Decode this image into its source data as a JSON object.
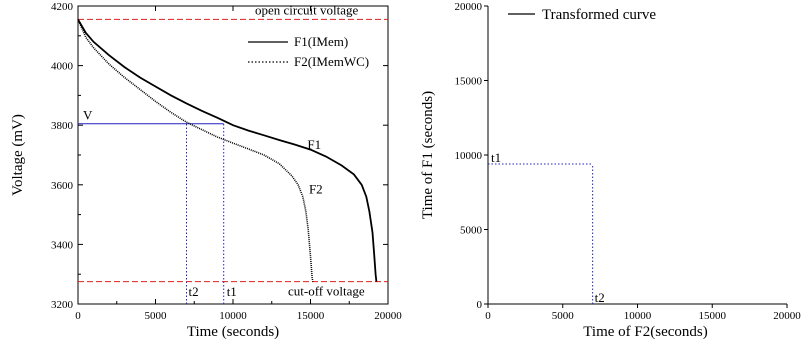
{
  "chart_data": [
    {
      "type": "line",
      "xlabel": "Time (seconds)",
      "ylabel": "Voltage (mV)",
      "xlim": [
        0,
        20000
      ],
      "ylim": [
        3200,
        4200
      ],
      "xticks": [
        "0",
        "5000",
        "10000",
        "15000",
        "20000"
      ],
      "yticks": [
        "3200",
        "3400",
        "3600",
        "3800",
        "4000",
        "4200"
      ],
      "grid": false,
      "legend_position": "top-right",
      "series": [
        {
          "name": "F1(IMem)",
          "label": "F1",
          "style": "solid",
          "color": "#000000",
          "x": [
            0,
            500,
            1000,
            2000,
            3000,
            4000,
            5000,
            6000,
            7000,
            8000,
            9000,
            10000,
            11000,
            12000,
            13000,
            14000,
            15000,
            16000,
            17000,
            17800,
            18300,
            18600,
            18800,
            19000,
            19100,
            19200,
            19250
          ],
          "y": [
            4155,
            4110,
            4080,
            4035,
            3995,
            3960,
            3930,
            3900,
            3873,
            3848,
            3825,
            3800,
            3782,
            3766,
            3750,
            3735,
            3718,
            3695,
            3665,
            3635,
            3600,
            3560,
            3510,
            3440,
            3370,
            3300,
            3275
          ]
        },
        {
          "name": "F2(IMemWC)",
          "label": "F2",
          "style": "dotted",
          "color": "#000000",
          "x": [
            0,
            500,
            1000,
            2000,
            3000,
            4000,
            5000,
            6000,
            7000,
            8000,
            9000,
            10000,
            11000,
            12000,
            13000,
            13800,
            14200,
            14500,
            14700,
            14850,
            15000,
            15100,
            15150
          ],
          "y": [
            4155,
            4095,
            4060,
            4005,
            3960,
            3920,
            3880,
            3843,
            3810,
            3785,
            3760,
            3740,
            3720,
            3700,
            3670,
            3630,
            3600,
            3560,
            3510,
            3450,
            3360,
            3290,
            3275
          ]
        }
      ],
      "reference_lines": [
        {
          "axis": "y",
          "value": 4155,
          "label": "open circuit voltage",
          "color": "#e02020",
          "style": "dashed"
        },
        {
          "axis": "y",
          "value": 3275,
          "label": "cut-off voltage",
          "color": "#e02020",
          "style": "dashed"
        },
        {
          "axis": "y",
          "value": 3805,
          "x_to": 9400,
          "label": "V",
          "color": "#2020c0",
          "style": "solid"
        },
        {
          "axis": "x",
          "value": 7000,
          "y_to": 3805,
          "label": "t2",
          "color": "#2020c0",
          "style": "dotted"
        },
        {
          "axis": "x",
          "value": 9400,
          "y_to": 3805,
          "label": "t1",
          "color": "#2020c0",
          "style": "dotted"
        }
      ]
    },
    {
      "type": "line",
      "xlabel": "Time of F2(seconds)",
      "ylabel": "Time of F1 (seconds)",
      "xlim": [
        0,
        20000
      ],
      "ylim": [
        0,
        20000
      ],
      "xticks": [
        "0",
        "5000",
        "10000",
        "15000",
        "20000"
      ],
      "yticks": [
        "0",
        "5000",
        "10000",
        "15000",
        "20000"
      ],
      "grid": false,
      "legend_position": "top-left",
      "series": [
        {
          "name": "Transformed curve",
          "style": "solid",
          "color": "#000000",
          "x": [],
          "y": []
        }
      ],
      "reference_lines": [
        {
          "axis": "y",
          "value": 9400,
          "x_to": 7000,
          "label": "t1",
          "color": "#2020c0",
          "style": "dotted"
        },
        {
          "axis": "x",
          "value": 7000,
          "y_to": 9400,
          "label": "t2",
          "color": "#2020c0",
          "style": "dotted"
        }
      ]
    }
  ]
}
